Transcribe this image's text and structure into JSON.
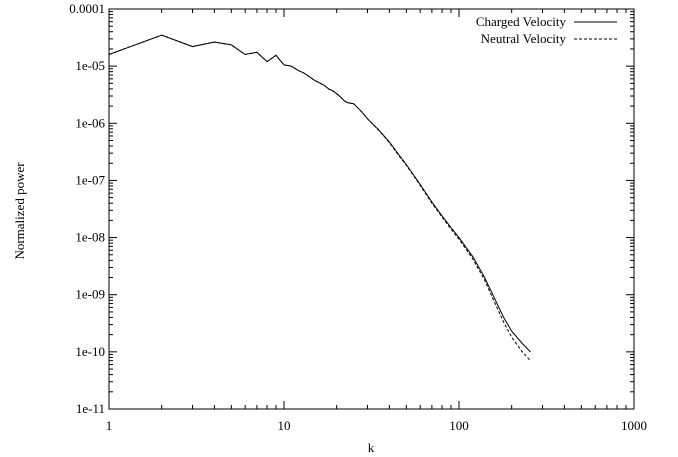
{
  "chart_data": {
    "type": "line",
    "title": "",
    "xlabel": "k",
    "ylabel": "Normalized power",
    "xscale": "log",
    "yscale": "log",
    "xlim": [
      1,
      1000
    ],
    "ylim": [
      1e-11,
      0.0001
    ],
    "x_ticks": [
      {
        "value": 1,
        "label": "1"
      },
      {
        "value": 10,
        "label": "10"
      },
      {
        "value": 100,
        "label": "100"
      },
      {
        "value": 1000,
        "label": "1000"
      }
    ],
    "y_ticks": [
      {
        "value": 1e-11,
        "label": "1e-11"
      },
      {
        "value": 1e-10,
        "label": "1e-10"
      },
      {
        "value": 1e-09,
        "label": "1e-09"
      },
      {
        "value": 1e-08,
        "label": "1e-08"
      },
      {
        "value": 1e-07,
        "label": "1e-07"
      },
      {
        "value": 1e-06,
        "label": "1e-06"
      },
      {
        "value": 1e-05,
        "label": "1e-05"
      },
      {
        "value": 0.0001,
        "label": "0.0001"
      }
    ],
    "grid": false,
    "legend": "top-right",
    "series": [
      {
        "name": "Charged Velocity",
        "style": "solid",
        "color": "#000000",
        "x": [
          1,
          2,
          3,
          4,
          5,
          6,
          7,
          8,
          9,
          10,
          11,
          12,
          13,
          14,
          15,
          16,
          17,
          18,
          19,
          20,
          21,
          22,
          23,
          25,
          28,
          30,
          35,
          40,
          45,
          50,
          60,
          70,
          80,
          90,
          100,
          120,
          140,
          160,
          180,
          200,
          230,
          256
        ],
        "y": [
          1.6e-05,
          3.5e-05,
          2.2e-05,
          2.65e-05,
          2.35e-05,
          1.6e-05,
          1.75e-05,
          1.2e-05,
          1.55e-05,
          1.05e-05,
          1e-05,
          8.5e-06,
          7.6e-06,
          6.5e-06,
          5.6e-06,
          5.1e-06,
          4.6e-06,
          4e-06,
          3.7e-06,
          3.3e-06,
          2.9e-06,
          2.5e-06,
          2.3e-06,
          2.2e-06,
          1.55e-06,
          1.2e-06,
          7.5e-07,
          4.7e-07,
          2.9e-07,
          1.9e-07,
          8.5e-08,
          4.2e-08,
          2.4e-08,
          1.5e-08,
          1e-08,
          4.6e-09,
          2e-09,
          8.5e-10,
          4e-10,
          2.3e-10,
          1.4e-10,
          1e-10
        ]
      },
      {
        "name": "Neutral Velocity",
        "style": "dashed",
        "color": "#000000",
        "x": [
          1,
          2,
          3,
          4,
          5,
          6,
          7,
          8,
          9,
          10,
          11,
          12,
          13,
          14,
          15,
          16,
          17,
          18,
          19,
          20,
          21,
          22,
          23,
          25,
          28,
          30,
          35,
          40,
          45,
          50,
          60,
          70,
          80,
          90,
          100,
          120,
          140,
          160,
          180,
          200,
          230,
          256
        ],
        "y": [
          1.6e-05,
          3.5e-05,
          2.2e-05,
          2.65e-05,
          2.35e-05,
          1.6e-05,
          1.75e-05,
          1.2e-05,
          1.55e-05,
          1.05e-05,
          1e-05,
          8.5e-06,
          7.6e-06,
          6.5e-06,
          5.6e-06,
          5.1e-06,
          4.6e-06,
          4e-06,
          3.7e-06,
          3.3e-06,
          2.9e-06,
          2.5e-06,
          2.3e-06,
          2.2e-06,
          1.55e-06,
          1.2e-06,
          7.4e-07,
          4.6e-07,
          2.8e-07,
          1.85e-07,
          8.2e-08,
          4e-08,
          2.3e-08,
          1.4e-08,
          9.4e-09,
          4.2e-09,
          1.8e-09,
          7.3e-10,
          3.3e-10,
          1.8e-10,
          1e-10,
          7e-11
        ]
      }
    ]
  }
}
